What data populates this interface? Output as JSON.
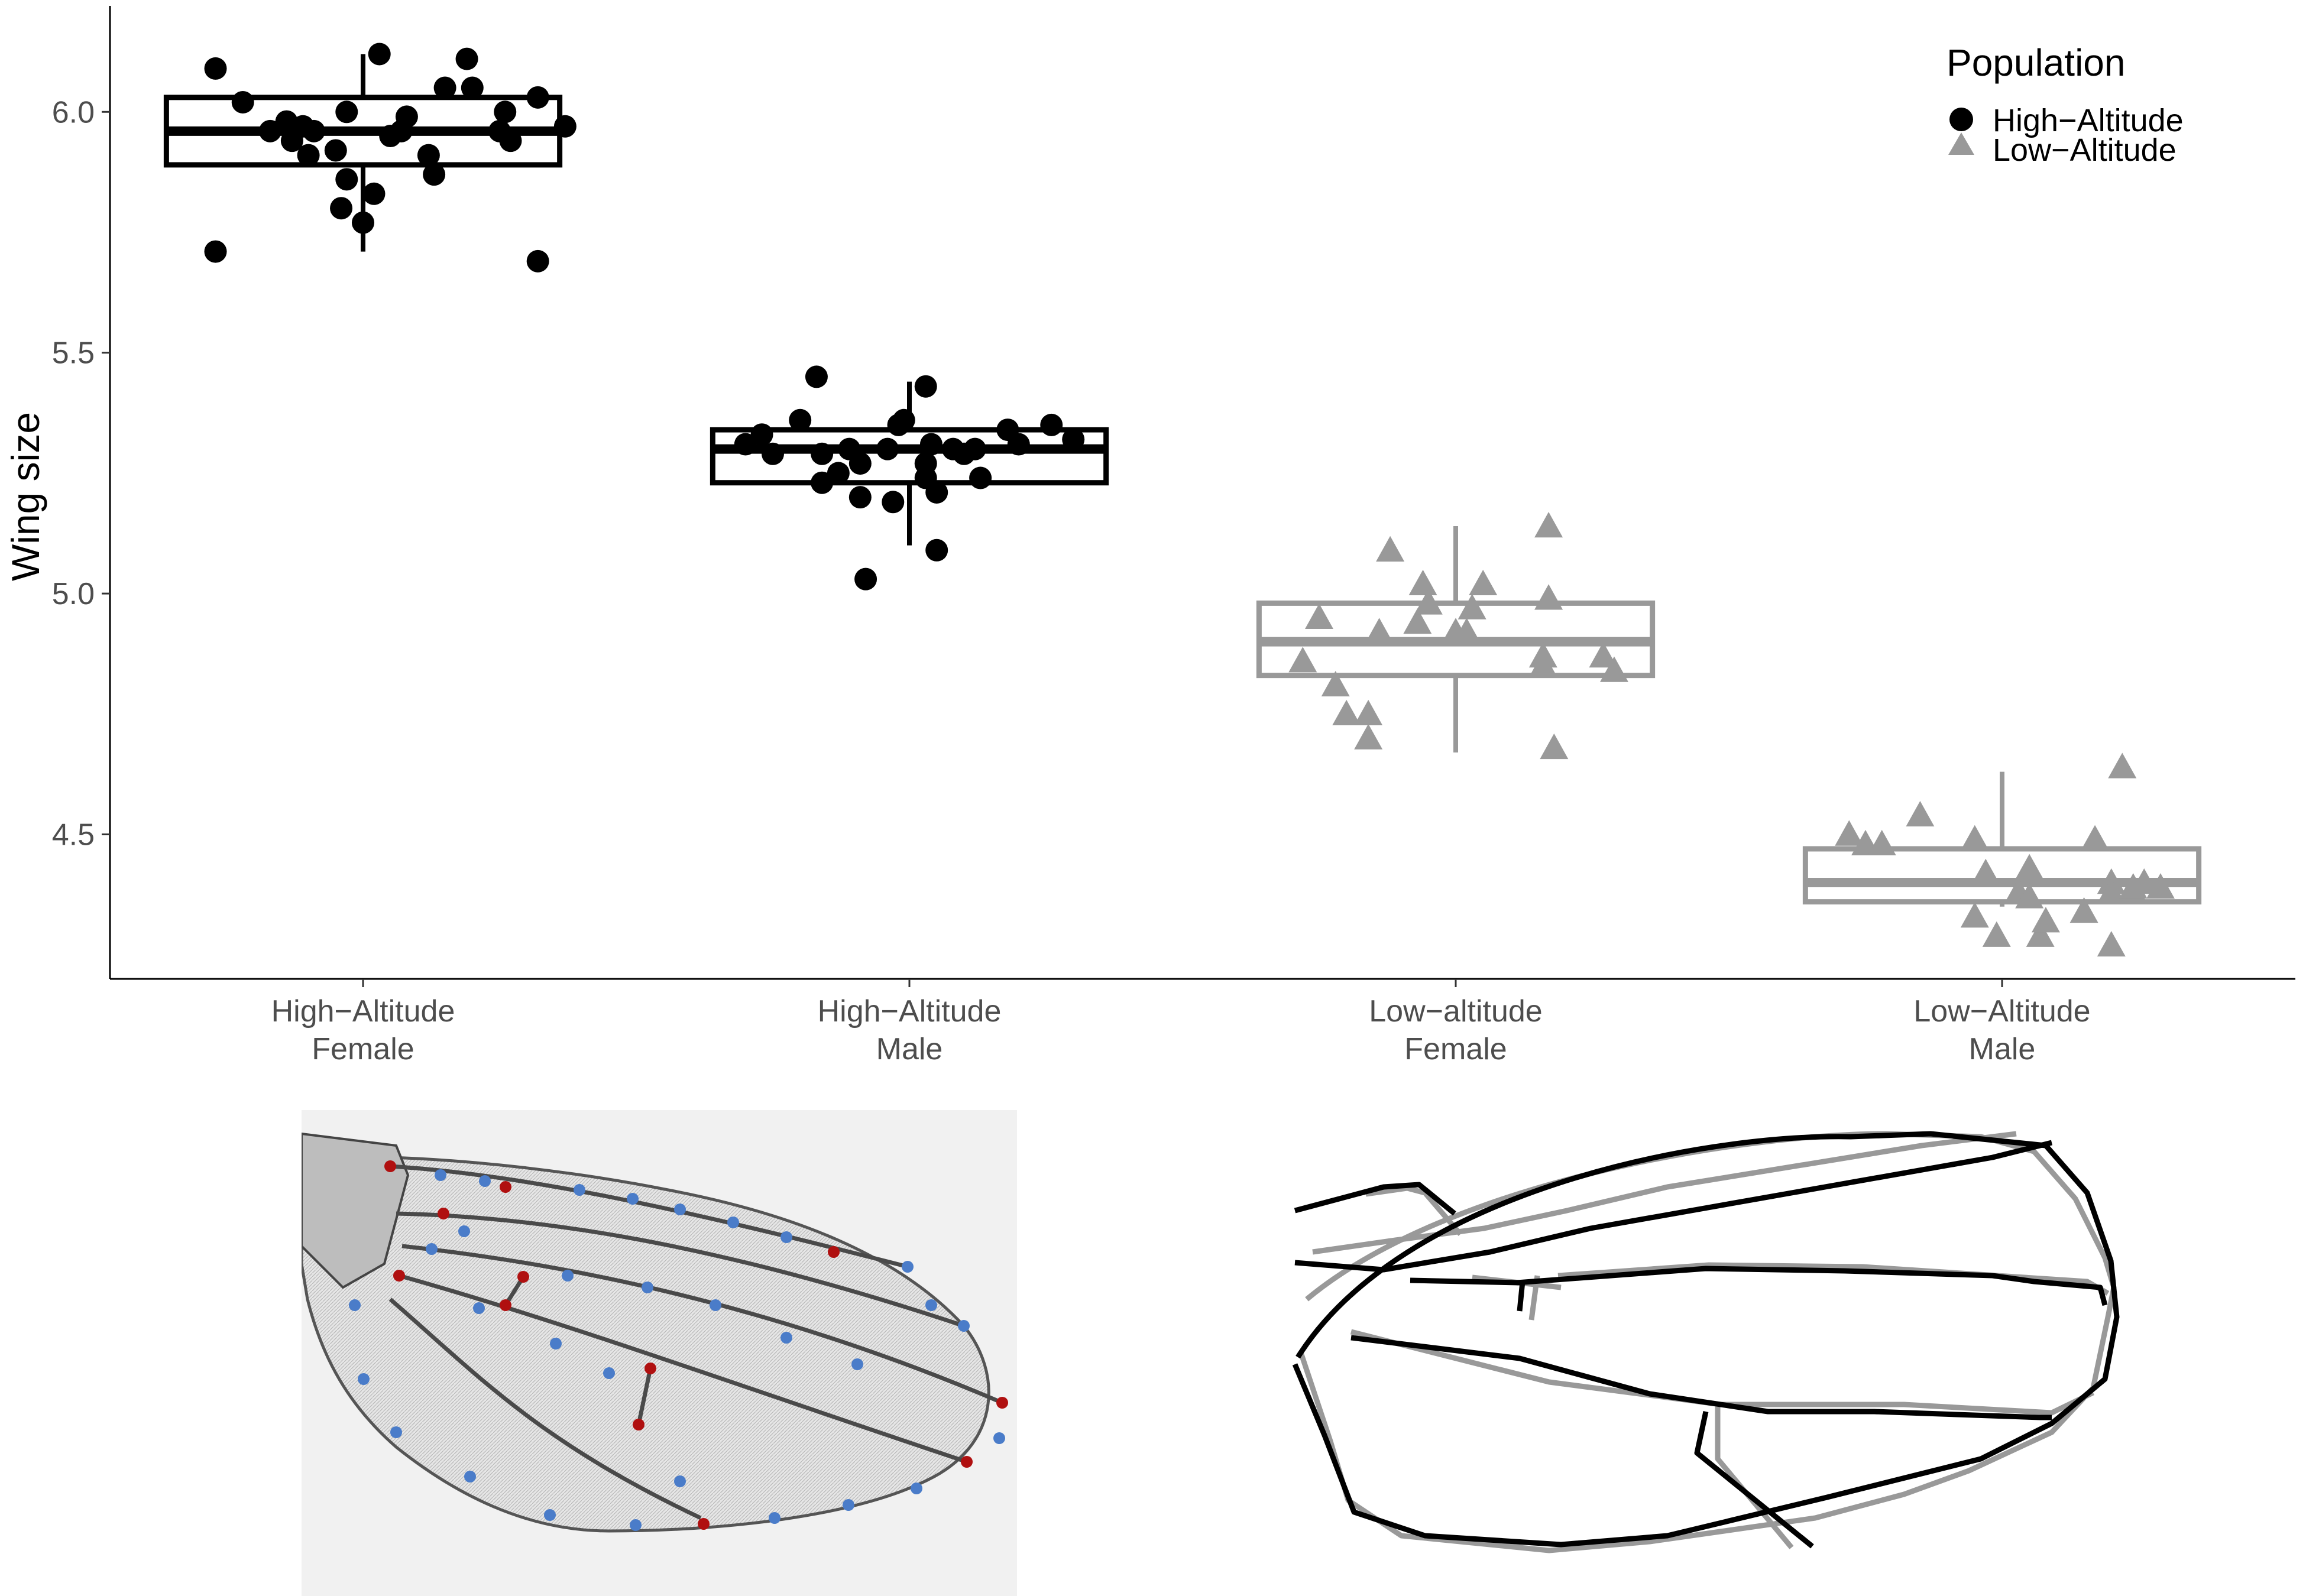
{
  "chart_data": {
    "type": "box",
    "ylabel": "Wing size",
    "ylim": [
      4.2,
      6.22
    ],
    "yticks": [
      "4.5",
      "5.0",
      "5.5",
      "6.0"
    ],
    "categories": [
      {
        "line1": "High−Altitude",
        "line2": "Female"
      },
      {
        "line1": "High−Altitude",
        "line2": "Male"
      },
      {
        "line1": "Low−altitude",
        "line2": "Female"
      },
      {
        "line1": "Low−Altitude",
        "line2": "Male"
      }
    ],
    "legend": {
      "title": "Population",
      "position": "top-right",
      "entries": [
        {
          "label": "High−Altitude",
          "shape": "circle",
          "color": "#000000"
        },
        {
          "label": "Low−Altitude",
          "shape": "triangle",
          "color": "#999999"
        }
      ]
    },
    "groups": [
      {
        "population": "High−Altitude",
        "color": "#000000",
        "shape": "circle",
        "box": {
          "whisker_low": 5.71,
          "q1": 5.89,
          "median": 5.96,
          "q3": 6.03,
          "whisker_high": 6.12
        },
        "points": [
          [
            -0.27,
            6.09
          ],
          [
            -0.22,
            6.02
          ],
          [
            -0.17,
            5.96
          ],
          [
            -0.14,
            5.98
          ],
          [
            -0.13,
            5.94
          ],
          [
            -0.11,
            5.97
          ],
          [
            -0.09,
            5.96
          ],
          [
            -0.1,
            5.91
          ],
          [
            -0.05,
            5.92
          ],
          [
            -0.03,
            6.0
          ],
          [
            -0.03,
            5.86
          ],
          [
            -0.04,
            5.8
          ],
          [
            0.0,
            5.77
          ],
          [
            0.02,
            5.83
          ],
          [
            0.03,
            6.12
          ],
          [
            0.07,
            5.96
          ],
          [
            0.05,
            5.95
          ],
          [
            0.08,
            5.99
          ],
          [
            0.12,
            5.91
          ],
          [
            0.13,
            5.87
          ],
          [
            0.15,
            6.05
          ],
          [
            0.19,
            6.11
          ],
          [
            0.2,
            6.05
          ],
          [
            0.25,
            5.96
          ],
          [
            0.26,
            6.0
          ],
          [
            0.27,
            5.94
          ],
          [
            0.32,
            5.69
          ],
          [
            0.32,
            6.03
          ],
          [
            0.37,
            5.97
          ],
          [
            -0.27,
            5.71
          ]
        ]
      },
      {
        "population": "High−Altitude",
        "color": "#000000",
        "shape": "circle",
        "box": {
          "whisker_low": 5.1,
          "q1": 5.23,
          "median": 5.3,
          "q3": 5.34,
          "whisker_high": 5.44
        },
        "points": [
          [
            -0.3,
            5.31
          ],
          [
            -0.27,
            5.33
          ],
          [
            -0.2,
            5.36
          ],
          [
            -0.16,
            5.29
          ],
          [
            -0.16,
            5.23
          ],
          [
            -0.17,
            5.45
          ],
          [
            -0.13,
            5.25
          ],
          [
            -0.11,
            5.3
          ],
          [
            -0.09,
            5.27
          ],
          [
            -0.09,
            5.2
          ],
          [
            -0.08,
            5.03
          ],
          [
            -0.04,
            5.3
          ],
          [
            -0.03,
            5.19
          ],
          [
            -0.02,
            5.35
          ],
          [
            -0.01,
            5.36
          ],
          [
            0.03,
            5.24
          ],
          [
            0.03,
            5.27
          ],
          [
            0.03,
            5.43
          ],
          [
            0.04,
            5.31
          ],
          [
            0.05,
            5.21
          ],
          [
            0.05,
            5.09
          ],
          [
            0.08,
            5.3
          ],
          [
            0.1,
            5.29
          ],
          [
            0.12,
            5.3
          ],
          [
            0.13,
            5.24
          ],
          [
            0.18,
            5.34
          ],
          [
            0.2,
            5.31
          ],
          [
            0.26,
            5.35
          ],
          [
            0.3,
            5.32
          ],
          [
            -0.25,
            5.29
          ]
        ]
      },
      {
        "population": "Low−Altitude",
        "color": "#999999",
        "shape": "triangle",
        "box": {
          "whisker_low": 4.67,
          "q1": 4.83,
          "median": 4.9,
          "q3": 4.98,
          "whisker_high": 5.14
        },
        "points": [
          [
            -0.28,
            4.86
          ],
          [
            -0.25,
            4.95
          ],
          [
            -0.22,
            4.81
          ],
          [
            -0.2,
            4.75
          ],
          [
            -0.16,
            4.75
          ],
          [
            -0.16,
            4.7
          ],
          [
            -0.12,
            5.09
          ],
          [
            -0.14,
            4.92
          ],
          [
            -0.07,
            4.94
          ],
          [
            -0.06,
            5.02
          ],
          [
            -0.05,
            4.98
          ],
          [
            0.0,
            4.92
          ],
          [
            0.03,
            4.97
          ],
          [
            0.05,
            5.02
          ],
          [
            0.16,
            4.87
          ],
          [
            0.16,
            4.85
          ],
          [
            0.17,
            4.99
          ],
          [
            0.18,
            4.68
          ],
          [
            0.17,
            5.14
          ],
          [
            0.27,
            4.87
          ],
          [
            0.29,
            4.84
          ],
          [
            0.02,
            4.92
          ]
        ]
      },
      {
        "population": "Low−Altitude",
        "color": "#999999",
        "shape": "triangle",
        "box": {
          "whisker_low": 4.35,
          "q1": 4.36,
          "median": 4.4,
          "q3": 4.47,
          "whisker_high": 4.63
        },
        "points": [
          [
            -0.28,
            4.5
          ],
          [
            -0.25,
            4.48
          ],
          [
            -0.22,
            4.48
          ],
          [
            -0.15,
            4.54
          ],
          [
            -0.05,
            4.49
          ],
          [
            -0.05,
            4.33
          ],
          [
            -0.03,
            4.42
          ],
          [
            -0.01,
            4.29
          ],
          [
            0.03,
            4.38
          ],
          [
            0.05,
            4.37
          ],
          [
            0.05,
            4.43
          ],
          [
            0.07,
            4.29
          ],
          [
            0.08,
            4.32
          ],
          [
            0.15,
            4.34
          ],
          [
            0.2,
            4.27
          ],
          [
            0.17,
            4.49
          ],
          [
            0.2,
            4.4
          ],
          [
            0.2,
            4.38
          ],
          [
            0.22,
            4.64
          ],
          [
            0.24,
            4.38
          ],
          [
            0.26,
            4.4
          ],
          [
            0.29,
            4.39
          ],
          [
            0.24,
            4.39
          ]
        ]
      }
    ]
  },
  "wing_photo": {
    "description": "Drosophila wing photograph with landmarks",
    "landmark_colors": {
      "blue": "#4a7cc9",
      "red": "#b01010"
    }
  },
  "wing_overlay": {
    "series": [
      {
        "color": "#000000"
      },
      {
        "color": "#999999"
      }
    ]
  }
}
